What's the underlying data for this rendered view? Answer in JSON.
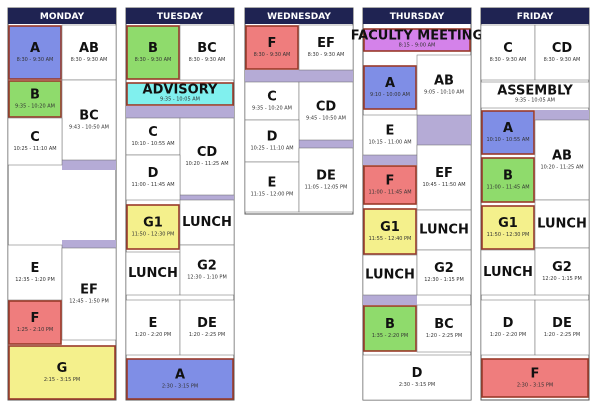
{
  "days": [
    {
      "name": "MONDAY",
      "blocks": [
        {
          "label": "A",
          "time": "8:30 - 9:30 AM"
        },
        {
          "label": "AB",
          "time": "8:30 - 9:30 AM"
        },
        {
          "label": "B",
          "time": "9:35 - 10:20 AM"
        },
        {
          "label": "BC",
          "time": "9:43 - 10:50 AM"
        },
        {
          "label": "C",
          "time": "10:25 - 11:10 AM"
        },
        {
          "label": "E",
          "time": "12:35 - 1:20 PM"
        },
        {
          "label": "EF",
          "time": "12:45 - 1:50 PM"
        },
        {
          "label": "F",
          "time": "1:25 - 2:10 PM"
        },
        {
          "label": "G",
          "time": "2:15 - 3:15 PM"
        }
      ]
    },
    {
      "name": "TUESDAY",
      "blocks": [
        {
          "label": "B",
          "time": "8:30 - 9:30 AM"
        },
        {
          "label": "BC",
          "time": "8:30 - 9:30 AM"
        },
        {
          "label": "ADVISORY",
          "time": "9:35 - 10:05 AM"
        },
        {
          "label": "C",
          "time": "10:10 - 10:55 AM"
        },
        {
          "label": "CD",
          "time": "10:20 - 11:25 AM"
        },
        {
          "label": "D",
          "time": "11:00 - 11:45 AM"
        },
        {
          "label": "G1",
          "time": "11:50 - 12:30 PM"
        },
        {
          "label": "LUNCH"
        },
        {
          "label": "LUNCH"
        },
        {
          "label": "G2",
          "time": "12:30 - 1:10 PM"
        },
        {
          "label": "E",
          "time": "1:20 - 2:20 PM"
        },
        {
          "label": "DE",
          "time": "1:20 - 2:25 PM"
        },
        {
          "label": "A",
          "time": "2:30 - 3:15 PM"
        }
      ]
    },
    {
      "name": "WEDNESDAY",
      "blocks": [
        {
          "label": "F",
          "time": "8:30 - 9:30 AM"
        },
        {
          "label": "EF",
          "time": "8:30 - 9:30 AM"
        },
        {
          "label": "C",
          "time": "9:35 - 10:20 AM"
        },
        {
          "label": "CD",
          "time": "9:45 - 10:50 AM"
        },
        {
          "label": "D",
          "time": "10:25 - 11:10 AM"
        },
        {
          "label": "E",
          "time": "11:15 - 12:00 PM"
        },
        {
          "label": "DE",
          "time": "11:05 - 12:05 PM"
        }
      ]
    },
    {
      "name": "THURSDAY",
      "blocks": [
        {
          "label": "FACULTY MEETING",
          "time": "8:15 - 9:00 AM"
        },
        {
          "label": "A",
          "time": "9:10 - 10:00 AM"
        },
        {
          "label": "AB",
          "time": "9:05 - 10:10 AM"
        },
        {
          "label": "E",
          "time": "10:15 - 11:00 AM"
        },
        {
          "label": "EF",
          "time": "10:45 - 11:50 AM"
        },
        {
          "label": "F",
          "time": "11:00 - 11:45 AM"
        },
        {
          "label": "G1",
          "time": "11:55 - 12:40 PM"
        },
        {
          "label": "LUNCH"
        },
        {
          "label": "LUNCH"
        },
        {
          "label": "G2",
          "time": "12:30 - 1:15 PM"
        },
        {
          "label": "B",
          "time": "1:35 - 2:20 PM"
        },
        {
          "label": "BC",
          "time": "1:20 - 2:25 PM"
        },
        {
          "label": "D",
          "time": "2:30 - 3:15 PM"
        }
      ]
    },
    {
      "name": "FRIDAY",
      "blocks": [
        {
          "label": "C",
          "time": "8:30 - 9:30 AM"
        },
        {
          "label": "CD",
          "time": "8:30 - 9:30 AM"
        },
        {
          "label": "ASSEMBLY",
          "time": "9:35 - 10:05 AM"
        },
        {
          "label": "A",
          "time": "10:10 - 10:55 AM"
        },
        {
          "label": "AB",
          "time": "10:20 - 11:25 AM"
        },
        {
          "label": "B",
          "time": "11:00 - 11:45 AM"
        },
        {
          "label": "G1",
          "time": "11:50 - 12:30 PM"
        },
        {
          "label": "LUNCH"
        },
        {
          "label": "LUNCH"
        },
        {
          "label": "G2",
          "time": "12:20 - 1:15 PM"
        },
        {
          "label": "D",
          "time": "1:20 - 2:20 PM"
        },
        {
          "label": "DE",
          "time": "1:20 - 2:25 PM"
        },
        {
          "label": "F",
          "time": "2:30 - 3:15 PM"
        }
      ]
    }
  ]
}
